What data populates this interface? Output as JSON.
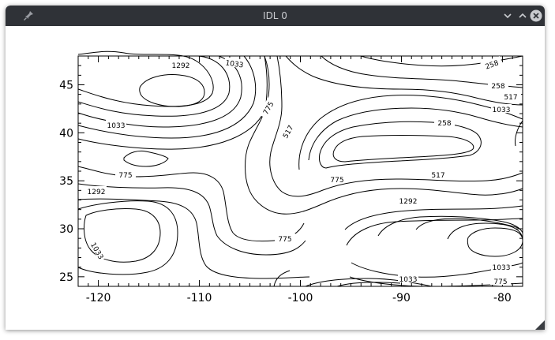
{
  "window": {
    "title": "IDL 0",
    "pin_icon": "pin-icon",
    "controls": [
      "minimize-chevron-icon",
      "maximize-chevron-icon",
      "close-icon"
    ]
  },
  "chart_data": {
    "type": "contour",
    "title": "",
    "xlabel": "",
    "ylabel": "",
    "xlim": [
      -122,
      -78
    ],
    "ylim": [
      24,
      48
    ],
    "x_ticks": [
      "-120",
      "-110",
      "-100",
      "-90",
      "-80"
    ],
    "y_ticks": [
      "25",
      "30",
      "35",
      "40",
      "45"
    ],
    "contour_levels": [
      258,
      517,
      775,
      1033,
      1292
    ],
    "contour_labels": [
      "1292",
      "1033",
      "775",
      "517",
      "258",
      "1033",
      "775",
      "1292",
      "1033",
      "775",
      "517",
      "258",
      "258",
      "517",
      "1033",
      "775",
      "1292",
      "1033",
      "775",
      "1033",
      "1292"
    ],
    "grid": false
  }
}
